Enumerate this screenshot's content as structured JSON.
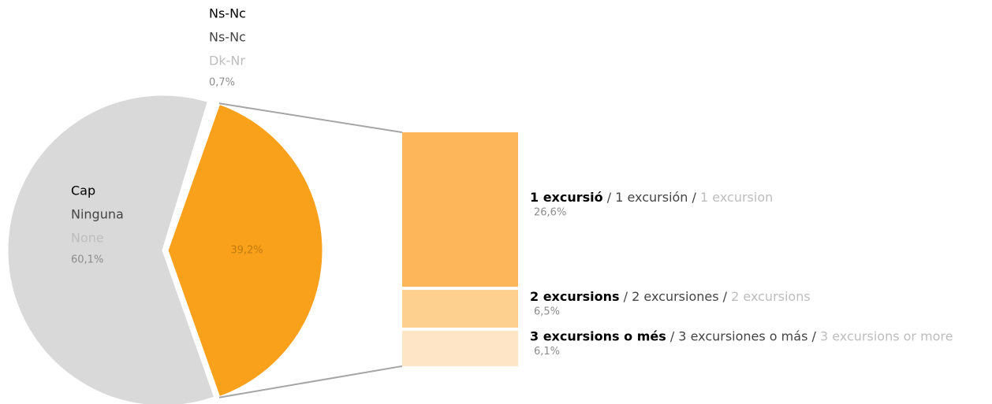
{
  "chart_data": {
    "type": "pie",
    "categories": [
      {
        "ca": "Cap",
        "es": "Ninguna",
        "en": "None"
      },
      {
        "ca": "Ns-Nc",
        "es": "Ns-Nc",
        "en": "Dk-Nr"
      },
      null
    ],
    "values": [
      60.1,
      0.7,
      39.2
    ],
    "value_labels": [
      "60,1%",
      "0,7%",
      "39,2%"
    ],
    "colors": [
      "#d9d9d9",
      "#ffffff",
      "#f9a11b"
    ],
    "separator": " / ",
    "breakdown": {
      "type": "bar",
      "categories": [
        {
          "ca": "1 excursió",
          "es": "1 excursión",
          "en": "1 excursion"
        },
        {
          "ca": "2 excursions",
          "es": "2 excursiones",
          "en": "2 excursions"
        },
        {
          "ca": "3 excursions o més",
          "es": "3 excursiones o más",
          "en": "3 excursions or more"
        }
      ],
      "values": [
        26.6,
        6.5,
        6.1
      ],
      "value_labels": [
        "26,6%",
        "6,5%",
        "6,1%"
      ],
      "colors": [
        "#fdb65a",
        "#fdd08f",
        "#fee5c5"
      ]
    }
  }
}
